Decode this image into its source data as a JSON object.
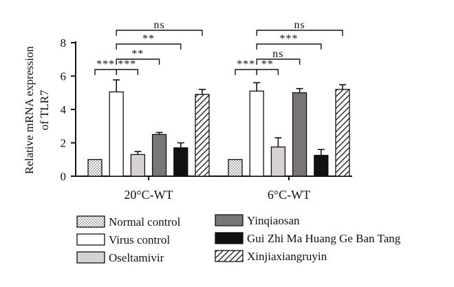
{
  "chart_data": {
    "type": "bar",
    "ylabel": "Relative mRNA expression of TLR7",
    "ylim": [
      0,
      8
    ],
    "yticks": [
      "0",
      "2",
      "4",
      "6",
      "8"
    ],
    "categories": [
      "20°C-WT",
      "6°C-WT"
    ],
    "series": [
      {
        "name": "Normal control",
        "values": [
          1.0,
          1.0
        ],
        "errors": [
          0.0,
          0.0
        ],
        "pattern": "dots"
      },
      {
        "name": "Virus control",
        "values": [
          5.05,
          5.1
        ],
        "errors": [
          0.72,
          0.5
        ],
        "pattern": "white"
      },
      {
        "name": "Oseltamivir",
        "values": [
          1.3,
          1.75
        ],
        "errors": [
          0.18,
          0.55
        ],
        "pattern": "lightgray"
      },
      {
        "name": "Yinqiaosan",
        "values": [
          2.5,
          5.0
        ],
        "errors": [
          0.12,
          0.25
        ],
        "pattern": "gray"
      },
      {
        "name": "Gui Zhi Ma Huang Ge Ban Tang",
        "values": [
          1.7,
          1.25
        ],
        "errors": [
          0.3,
          0.35
        ],
        "pattern": "black"
      },
      {
        "name": "Xinjiaxiangruyin",
        "values": [
          4.9,
          5.2
        ],
        "errors": [
          0.3,
          0.28
        ],
        "pattern": "hatch"
      }
    ],
    "significance": [
      {
        "group": 0,
        "from": 1,
        "to": 0,
        "label": "***"
      },
      {
        "group": 0,
        "from": 1,
        "to": 2,
        "label": "***"
      },
      {
        "group": 0,
        "from": 1,
        "to": 3,
        "label": "**"
      },
      {
        "group": 0,
        "from": 1,
        "to": 4,
        "label": "**"
      },
      {
        "group": 0,
        "from": 1,
        "to": 5,
        "label": "ns"
      },
      {
        "group": 1,
        "from": 1,
        "to": 0,
        "label": "***"
      },
      {
        "group": 1,
        "from": 1,
        "to": 2,
        "label": "**"
      },
      {
        "group": 1,
        "from": 1,
        "to": 3,
        "label": "ns"
      },
      {
        "group": 1,
        "from": 1,
        "to": 4,
        "label": "***"
      },
      {
        "group": 1,
        "from": 1,
        "to": 5,
        "label": "ns"
      }
    ],
    "legend_position": "bottom",
    "grid": false,
    "colors": {
      "white": "#ffffff",
      "lightgray": "#d6d2d2",
      "gray": "#7b7676",
      "black": "#111111",
      "outline": "#111111"
    }
  }
}
